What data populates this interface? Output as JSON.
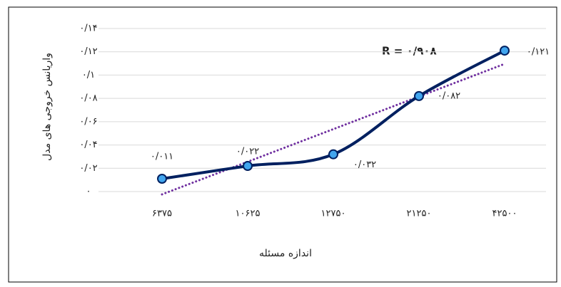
{
  "chart_data": {
    "type": "line",
    "categories": [
      "۶۳۷۵",
      "۱۰۶۲۵",
      "۱۲۷۵۰",
      "۲۱۲۵۰",
      "۴۲۵۰۰"
    ],
    "series": [
      {
        "color": "#002060",
        "marker_color": "#41a5ee",
        "values": [
          0.011,
          0.022,
          0.032,
          0.082,
          0.121
        ],
        "value_labels": [
          "۰/۰۱۱",
          "۰/۰۲۲",
          "۰/۰۳۲",
          "۰/۰۸۲",
          "۰/۱۲۱"
        ]
      }
    ],
    "trendline": {
      "color": "#7030a0",
      "kind": "linear"
    },
    "annotation": "R  = ۰/۹۰۸",
    "x_label": "اندازه مسئله",
    "y_label": "واریانس خروجی های مدل",
    "ylim": [
      0,
      0.14
    ],
    "yticks": [
      {
        "value": 0,
        "label": "۰"
      },
      {
        "value": 0.02,
        "label": "۰/۰۲"
      },
      {
        "value": 0.04,
        "label": "۰/۰۴"
      },
      {
        "value": 0.06,
        "label": "۰/۰۶"
      },
      {
        "value": 0.08,
        "label": "۰/۰۸"
      },
      {
        "value": 0.1,
        "label": "۰/۱"
      },
      {
        "value": 0.12,
        "label": "۰/۱۲"
      },
      {
        "value": 0.14,
        "label": "۰/۱۴"
      }
    ],
    "grid": true
  }
}
